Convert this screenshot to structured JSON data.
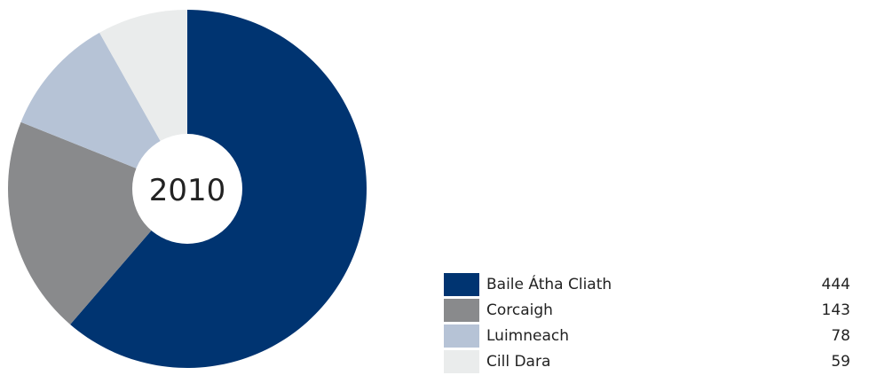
{
  "chart_data": {
    "type": "pie",
    "center_label": "2010",
    "slices": [
      {
        "label": "Baile Átha Cliath",
        "value": 444,
        "color": "#003471"
      },
      {
        "label": "Corcaigh",
        "value": 143,
        "color": "#898a8c"
      },
      {
        "label": "Luimneach",
        "value": 78,
        "color": "#b6c3d6"
      },
      {
        "label": "Cill Dara",
        "value": 59,
        "color": "#eaecec"
      }
    ],
    "legend_position": "bottom-right"
  }
}
